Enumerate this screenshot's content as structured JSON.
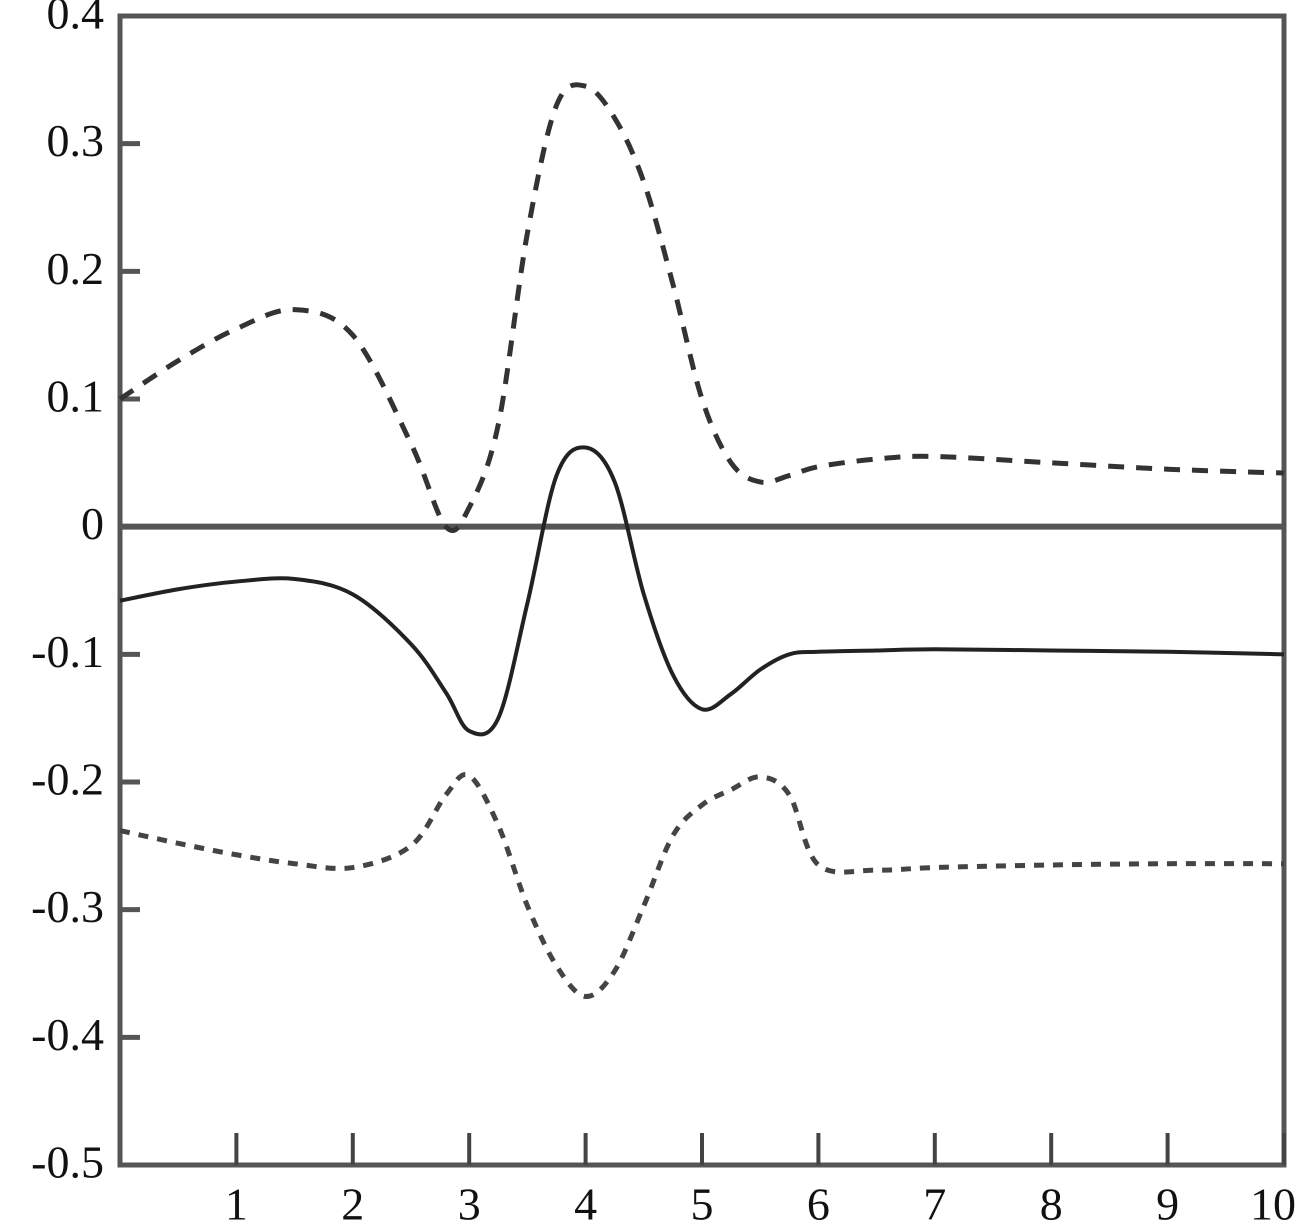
{
  "chart_data": {
    "type": "line",
    "x": [
      0,
      0.5,
      1,
      1.5,
      2,
      2.5,
      2.8,
      3,
      3.25,
      3.5,
      3.75,
      4,
      4.25,
      4.5,
      4.75,
      5,
      5.25,
      5.5,
      5.75,
      6,
      6.5,
      7,
      8,
      9,
      10
    ],
    "series": [
      {
        "color": "#333333",
        "line_style": "dashed",
        "values": [
          0.1,
          0.13,
          0.155,
          0.17,
          0.15,
          0.065,
          0.0,
          0.015,
          0.08,
          0.23,
          0.33,
          0.345,
          0.32,
          0.27,
          0.19,
          0.1,
          0.05,
          0.035,
          0.04,
          0.047,
          0.053,
          0.055,
          0.05,
          0.045,
          0.042
        ]
      },
      {
        "color": "#222222",
        "line_style": "solid",
        "values": [
          -0.058,
          -0.049,
          -0.043,
          -0.041,
          -0.053,
          -0.092,
          -0.13,
          -0.16,
          -0.15,
          -0.06,
          0.04,
          0.062,
          0.035,
          -0.053,
          -0.116,
          -0.143,
          -0.131,
          -0.112,
          -0.1,
          -0.098,
          -0.097,
          -0.096,
          -0.097,
          -0.098,
          -0.1
        ]
      },
      {
        "color": "#444444",
        "line_style": "dotted",
        "values": [
          -0.238,
          -0.248,
          -0.257,
          -0.264,
          -0.267,
          -0.25,
          -0.21,
          -0.195,
          -0.234,
          -0.297,
          -0.344,
          -0.368,
          -0.348,
          -0.297,
          -0.242,
          -0.218,
          -0.206,
          -0.196,
          -0.21,
          -0.265,
          -0.269,
          -0.267,
          -0.265,
          -0.264,
          -0.264
        ]
      }
    ],
    "xlim": [
      0,
      10
    ],
    "xticks": [
      1,
      2,
      3,
      4,
      5,
      6,
      7,
      8,
      9,
      10
    ],
    "ylim": [
      -0.5,
      0.4
    ],
    "yticks": [
      -0.5,
      -0.4,
      -0.3,
      -0.2,
      -0.1,
      0,
      0.1,
      0.2,
      0.3,
      0.4
    ],
    "zero_line": true
  }
}
